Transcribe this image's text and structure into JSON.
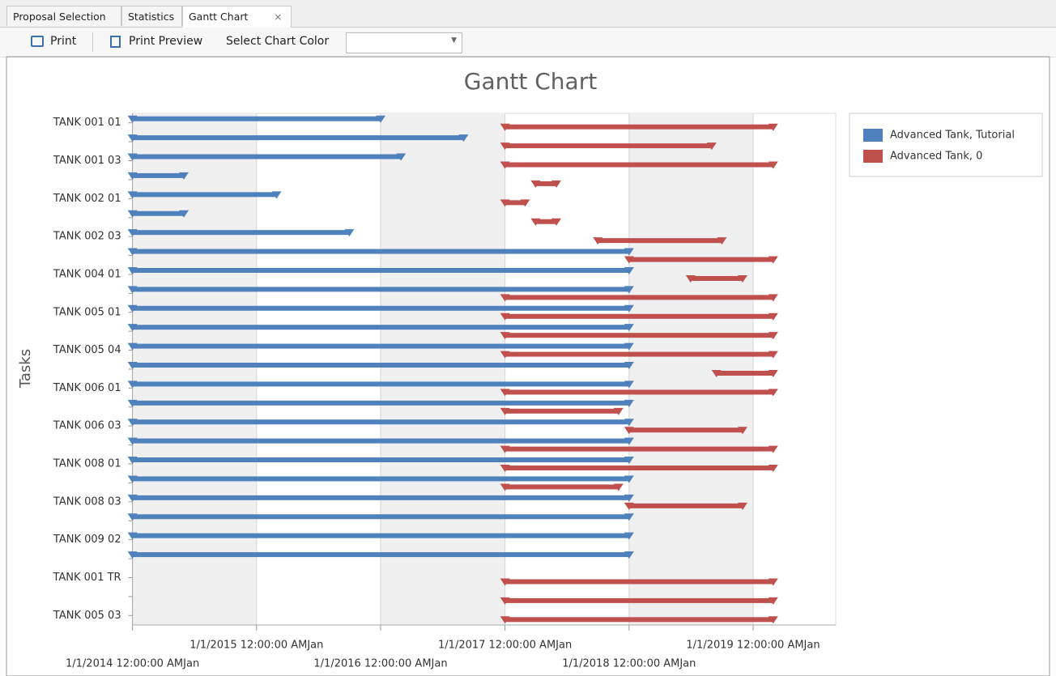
{
  "tabs": [
    "Proposal Selection",
    "Statistics",
    "Gantt Chart"
  ],
  "toolbar": {
    "print": "Print",
    "print_preview": "Print Preview",
    "color_label": "Select Chart Color"
  },
  "chart_data": {
    "type": "gantt",
    "title": "Gantt Chart",
    "y_label": "Tasks",
    "categories": [
      "TANK 001 01",
      null,
      "TANK 001 03",
      null,
      "TANK 002 01",
      null,
      "TANK 002 03",
      null,
      "TANK 004 01",
      null,
      "TANK 005 01",
      null,
      "TANK 005 04",
      null,
      "TANK 006 01",
      null,
      "TANK 006 03",
      null,
      "TANK 008 01",
      null,
      "TANK 008 03",
      null,
      "TANK 009 02",
      null,
      "TANK 001 TR",
      null,
      "TANK 005 03"
    ],
    "xlim": [
      "2014-01-01",
      "2019-09-01"
    ],
    "xticks": [
      {
        "value": "2014-01-01",
        "label": "1/1/2014 12:00:00 AMJan"
      },
      {
        "value": "2015-01-01",
        "label": "1/1/2015 12:00:00 AMJan"
      },
      {
        "value": "2016-01-01",
        "label": "1/1/2016 12:00:00 AMJan"
      },
      {
        "value": "2017-01-01",
        "label": "1/1/2017 12:00:00 AMJan"
      },
      {
        "value": "2018-01-01",
        "label": "1/1/2018 12:00:00 AMJan"
      },
      {
        "value": "2019-01-01",
        "label": "1/1/2019 12:00:00 AMJan"
      }
    ],
    "grid": true,
    "interlaced": true,
    "legend": "top-right",
    "series": [
      {
        "name": "Advanced Tank, Tutorial",
        "color": "#4f81bd",
        "values": [
          [
            "2014-01-01",
            "2016-01-01"
          ],
          [
            "2014-01-01",
            "2016-09-01"
          ],
          [
            "2014-01-01",
            "2016-03-01"
          ],
          [
            "2014-01-01",
            "2014-06-01"
          ],
          [
            "2014-01-01",
            "2015-03-01"
          ],
          [
            "2014-01-01",
            "2014-06-01"
          ],
          [
            "2014-01-01",
            "2015-10-01"
          ],
          [
            "2014-01-01",
            "2018-01-01"
          ],
          [
            "2014-01-01",
            "2018-01-01"
          ],
          [
            "2014-01-01",
            "2018-01-01"
          ],
          [
            "2014-01-01",
            "2018-01-01"
          ],
          [
            "2014-01-01",
            "2018-01-01"
          ],
          [
            "2014-01-01",
            "2018-01-01"
          ],
          [
            "2014-01-01",
            "2018-01-01"
          ],
          [
            "2014-01-01",
            "2018-01-01"
          ],
          [
            "2014-01-01",
            "2018-01-01"
          ],
          [
            "2014-01-01",
            "2018-01-01"
          ],
          [
            "2014-01-01",
            "2018-01-01"
          ],
          [
            "2014-01-01",
            "2018-01-01"
          ],
          [
            "2014-01-01",
            "2018-01-01"
          ],
          [
            "2014-01-01",
            "2018-01-01"
          ],
          [
            "2014-01-01",
            "2018-01-01"
          ],
          [
            "2014-01-01",
            "2018-01-01"
          ],
          [
            "2014-01-01",
            "2018-01-01"
          ],
          null,
          null,
          null
        ]
      },
      {
        "name": "Advanced Tank, 0",
        "color": "#c0504d",
        "values": [
          [
            "2017-01-01",
            "2019-03-01"
          ],
          [
            "2017-01-01",
            "2018-09-01"
          ],
          [
            "2017-01-01",
            "2019-03-01"
          ],
          [
            "2017-04-01",
            "2017-06-01"
          ],
          [
            "2017-01-01",
            "2017-03-01"
          ],
          [
            "2017-04-01",
            "2017-06-01"
          ],
          [
            "2017-10-01",
            "2018-10-01"
          ],
          [
            "2018-01-01",
            "2019-03-01"
          ],
          [
            "2018-07-01",
            "2018-12-01"
          ],
          [
            "2017-01-01",
            "2019-03-01"
          ],
          [
            "2017-01-01",
            "2019-03-01"
          ],
          [
            "2017-01-01",
            "2019-03-01"
          ],
          [
            "2017-01-01",
            "2019-03-01"
          ],
          [
            "2018-09-15",
            "2019-03-01"
          ],
          [
            "2017-01-01",
            "2019-03-01"
          ],
          [
            "2017-01-01",
            "2017-12-01"
          ],
          [
            "2018-01-01",
            "2018-12-01"
          ],
          [
            "2017-01-01",
            "2019-03-01"
          ],
          [
            "2017-01-01",
            "2019-03-01"
          ],
          [
            "2017-01-01",
            "2017-12-01"
          ],
          [
            "2018-01-01",
            "2018-12-01"
          ],
          null,
          null,
          null,
          [
            "2017-01-01",
            "2019-03-01"
          ],
          [
            "2017-01-01",
            "2019-03-01"
          ],
          [
            "2017-01-01",
            "2019-03-01"
          ]
        ]
      }
    ]
  }
}
